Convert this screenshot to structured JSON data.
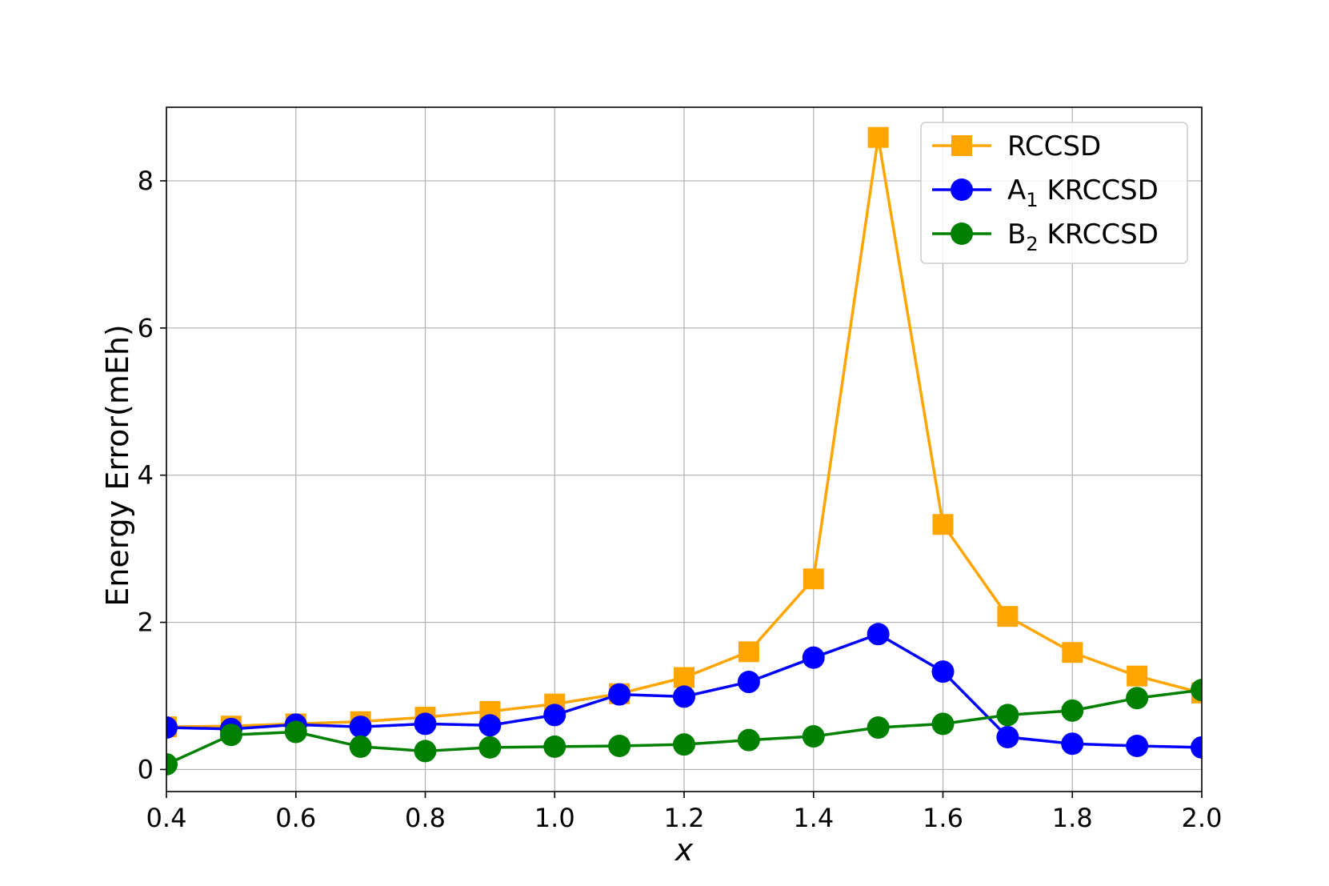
{
  "chart_data": {
    "type": "line",
    "title": "",
    "xlabel": "x",
    "ylabel": "Energy Error(mEh)",
    "xlim": [
      0.4,
      2.0
    ],
    "ylim": [
      -0.3,
      9.0
    ],
    "xticks": [
      0.4,
      0.6,
      0.8,
      1.0,
      1.2,
      1.4,
      1.6,
      1.8,
      2.0
    ],
    "xtick_labels": [
      "0.4",
      "0.6",
      "0.8",
      "1.0",
      "1.2",
      "1.4",
      "1.6",
      "1.8",
      "2.0"
    ],
    "yticks": [
      0,
      2,
      4,
      6,
      8
    ],
    "ytick_labels": [
      "0",
      "2",
      "4",
      "6",
      "8"
    ],
    "grid": true,
    "legend_position": "top-right",
    "x": [
      0.4,
      0.5,
      0.6,
      0.7,
      0.8,
      0.9,
      1.0,
      1.1,
      1.2,
      1.3,
      1.4,
      1.5,
      1.6,
      1.7,
      1.8,
      1.9,
      2.0
    ],
    "series": [
      {
        "name": "RCCSD",
        "label_main": "RCCSD",
        "label_sub": "",
        "label_rest": "",
        "color": "#FFA500",
        "marker": "square",
        "values": [
          0.58,
          0.59,
          0.62,
          0.65,
          0.71,
          0.79,
          0.89,
          1.03,
          1.25,
          1.6,
          2.59,
          8.59,
          3.33,
          2.08,
          1.59,
          1.27,
          1.04
        ]
      },
      {
        "name": "A1 KRCCSD",
        "label_main": "A",
        "label_sub": "1",
        "label_rest": " KRCCSD",
        "color": "#0000FF",
        "marker": "circle",
        "values": [
          0.57,
          0.55,
          0.61,
          0.58,
          0.62,
          0.6,
          0.74,
          1.02,
          0.99,
          1.19,
          1.52,
          1.84,
          1.33,
          0.44,
          0.35,
          0.32,
          0.3
        ]
      },
      {
        "name": "B2 KRCCSD",
        "label_main": "B",
        "label_sub": "2",
        "label_rest": " KRCCSD",
        "color": "#008000",
        "marker": "circle",
        "values": [
          0.07,
          0.47,
          0.51,
          0.31,
          0.25,
          0.3,
          0.31,
          0.32,
          0.34,
          0.4,
          0.45,
          0.57,
          0.62,
          0.74,
          0.8,
          0.97,
          1.08
        ]
      }
    ]
  }
}
